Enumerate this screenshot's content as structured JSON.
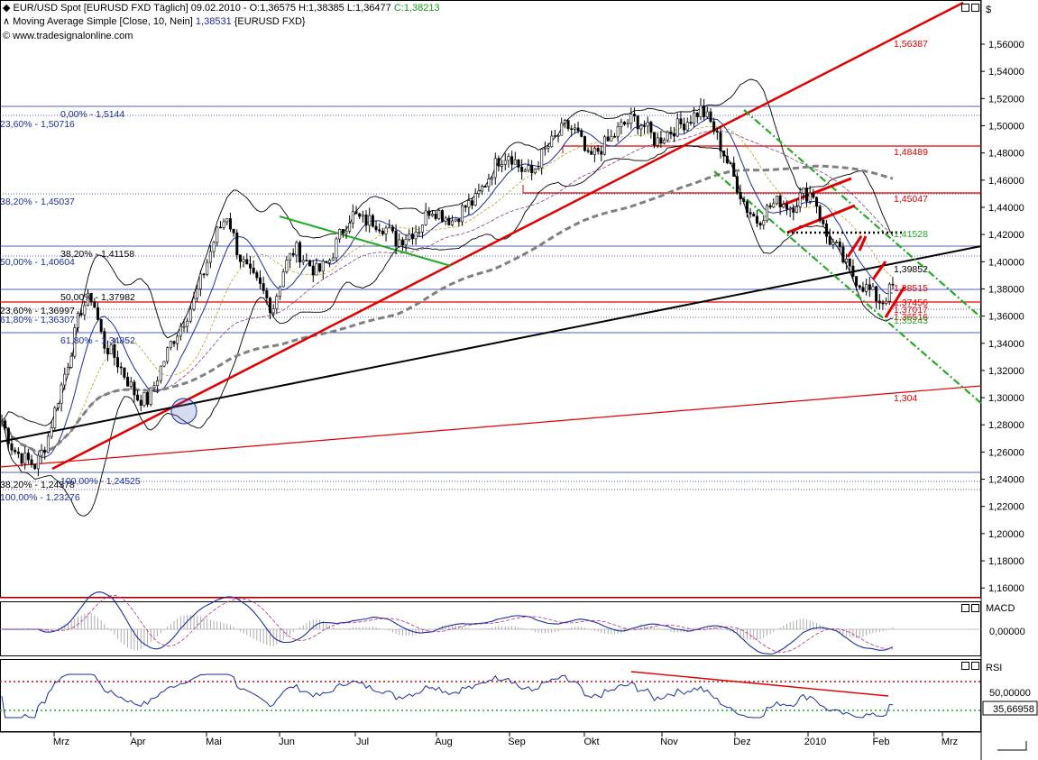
{
  "header": {
    "line1_title": "EUR/USD Spot [EURUSD FXD  Täglich] 09.02.2010 - O:1,36575 H:1,38385 L:1,36477 ",
    "line1_close": "C:1,38213",
    "line2_prefix": "Moving Average Simple [Close, 10, Nein] ",
    "line2_value": "1,38531",
    "line2_suffix": " {EURUSD FXD}",
    "line3": "www.tradesignalonline.com"
  },
  "axis": {
    "currency_symbol": "$",
    "macd_label": "MACD",
    "rsi_label": "RSI",
    "macd_tick": "0,00000",
    "rsi_tick": "50,00000",
    "rsi_value": "35,66958"
  },
  "colors": {
    "price_blue": "#1a2ea0",
    "red": "#e00000",
    "green": "#22aa22",
    "black": "#000000",
    "grey_ma": "#808080",
    "rsi_red_dots": "#e00000",
    "rsi_green_dots": "#22aa22"
  },
  "chart_data": {
    "type": "candlestick",
    "symbol": "EUR/USD Spot",
    "y_range": [
      1.155,
      1.572
    ],
    "y_ticks": [
      "1,56000",
      "1,54000",
      "1,52000",
      "1,50000",
      "1,48000",
      "1,46000",
      "1,44000",
      "1,42000",
      "1,40000",
      "1,38000",
      "1,36000",
      "1,34000",
      "1,32000",
      "1,30000",
      "1,28000",
      "1,26000",
      "1,24000",
      "1,22000",
      "1,20000",
      "1,18000",
      "1,16000"
    ],
    "x_labels": [
      "Mrz",
      "Apr",
      "Mai",
      "Jun",
      "Jul",
      "Aug",
      "Sep",
      "Okt",
      "Nov",
      "Dez",
      "2010",
      "Feb",
      "Mrz"
    ],
    "close_path": [
      1.283,
      1.262,
      1.255,
      1.25,
      1.268,
      1.3,
      1.33,
      1.365,
      1.375,
      1.34,
      1.33,
      1.315,
      1.3,
      1.298,
      1.32,
      1.34,
      1.355,
      1.37,
      1.395,
      1.42,
      1.435,
      1.405,
      1.39,
      1.38,
      1.365,
      1.395,
      1.41,
      1.4,
      1.392,
      1.4,
      1.42,
      1.435,
      1.43,
      1.43,
      1.425,
      1.415,
      1.42,
      1.425,
      1.44,
      1.435,
      1.43,
      1.44,
      1.445,
      1.46,
      1.475,
      1.48,
      1.468,
      1.465,
      1.48,
      1.49,
      1.5,
      1.495,
      1.475,
      1.483,
      1.49,
      1.5,
      1.505,
      1.5,
      1.488,
      1.495,
      1.5,
      1.505,
      1.512,
      1.5,
      1.48,
      1.46,
      1.44,
      1.43,
      1.44,
      1.445,
      1.44,
      1.45,
      1.45,
      1.42,
      1.41,
      1.395,
      1.385,
      1.378,
      1.37,
      1.382
    ],
    "price_labels": [
      {
        "text": "1,56387",
        "color": "red"
      },
      {
        "text": "1,48489",
        "color": "red"
      },
      {
        "text": "1,45047",
        "color": "red"
      },
      {
        "text": "1,41528",
        "color": "green"
      },
      {
        "text": "1,39852",
        "color": "black"
      },
      {
        "text": "1,38515",
        "color": "red"
      },
      {
        "text": "1,37456",
        "color": "red"
      },
      {
        "text": "1,37017",
        "color": "red"
      },
      {
        "text": "1,36516",
        "color": "red"
      },
      {
        "text": "1,35243",
        "color": "green"
      },
      {
        "text": "1,304",
        "color": "red"
      }
    ],
    "fib_labels": [
      {
        "text": "0,00% - 1,5144"
      },
      {
        "text": "23,60% - 1,50716"
      },
      {
        "text": "38,20% - 1,45037"
      },
      {
        "text": "38,20% - 1,41158"
      },
      {
        "text": "50,00% - 1,40604"
      },
      {
        "text": "50,00% - 1,37982"
      },
      {
        "text": "23,60% - 1,36997"
      },
      {
        "text": "61,80% - 1,36307"
      },
      {
        "text": "61,80% - 1,34852"
      },
      {
        "text": "38,20% - 1,24378"
      },
      {
        "text": "100,00% - 1,24525"
      },
      {
        "text": "100,00% - 1,23276"
      }
    ]
  }
}
